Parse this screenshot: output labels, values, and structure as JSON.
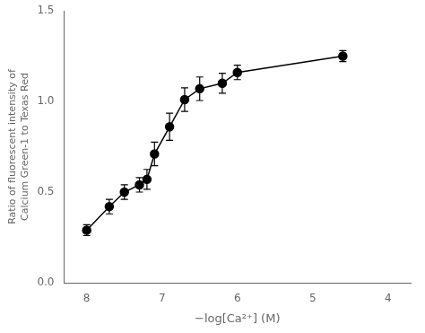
{
  "chart_data": {
    "type": "line",
    "x": [
      8.0,
      7.7,
      7.5,
      7.3,
      7.2,
      7.1,
      6.9,
      6.7,
      6.5,
      6.2,
      6.0,
      4.6
    ],
    "values": [
      0.29,
      0.42,
      0.5,
      0.54,
      0.57,
      0.71,
      0.86,
      1.01,
      1.07,
      1.1,
      1.16,
      1.25
    ],
    "yerr": [
      0.03,
      0.04,
      0.04,
      0.04,
      0.055,
      0.065,
      0.075,
      0.065,
      0.065,
      0.055,
      0.04,
      0.03
    ],
    "color": "black",
    "marker": "circle",
    "xlabel": "−log[Ca²⁺] (M)",
    "ylabel": "Ratio of fluorescent intensity of\nCalcium Green-1 to Texas Red",
    "xlim": [
      8.3,
      3.7
    ],
    "ylim": [
      0.0,
      1.5
    ],
    "xticks": [
      8,
      7,
      6,
      5,
      4
    ],
    "yticks": [
      {
        "value": 0,
        "label": "0.0"
      },
      0.5,
      {
        "value": 1,
        "label": "1.0"
      },
      1.5
    ],
    "grid": false
  }
}
